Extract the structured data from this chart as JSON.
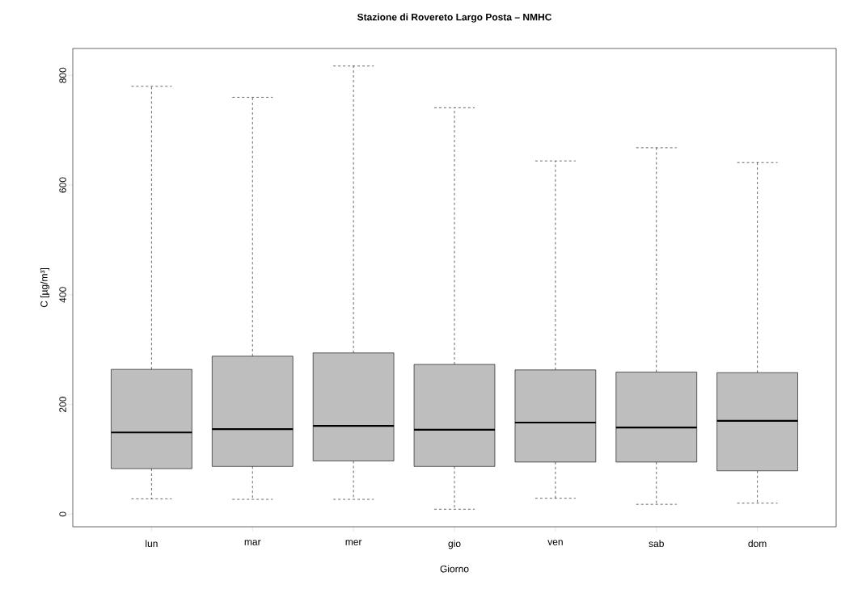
{
  "chart_data": {
    "type": "box",
    "title": "Stazione di Rovereto Largo Posta – NMHC",
    "xlabel": "Giorno",
    "ylabel": "C [µg/m³]",
    "categories": [
      "lun",
      "mar",
      "mer",
      "gio",
      "ven",
      "sab",
      "dom"
    ],
    "color": "#bebebe",
    "line_style": "dashed",
    "boxes": [
      {
        "low": 28,
        "q1": 83,
        "median": 149,
        "q3": 264,
        "high": 780
      },
      {
        "low": 27,
        "q1": 87,
        "median": 155,
        "q3": 288,
        "high": 760
      },
      {
        "low": 27,
        "q1": 97,
        "median": 161,
        "q3": 294,
        "high": 817
      },
      {
        "low": 9,
        "q1": 87,
        "median": 154,
        "q3": 273,
        "high": 741
      },
      {
        "low": 29,
        "q1": 95,
        "median": 167,
        "q3": 263,
        "high": 644
      },
      {
        "low": 18,
        "q1": 95,
        "median": 158,
        "q3": 259,
        "high": 668
      },
      {
        "low": 20,
        "q1": 79,
        "median": 170,
        "q3": 258,
        "high": 641
      }
    ],
    "ylim": [
      -23,
      849
    ],
    "yticks": [
      0,
      200,
      400,
      600,
      800
    ],
    "grid": false
  }
}
